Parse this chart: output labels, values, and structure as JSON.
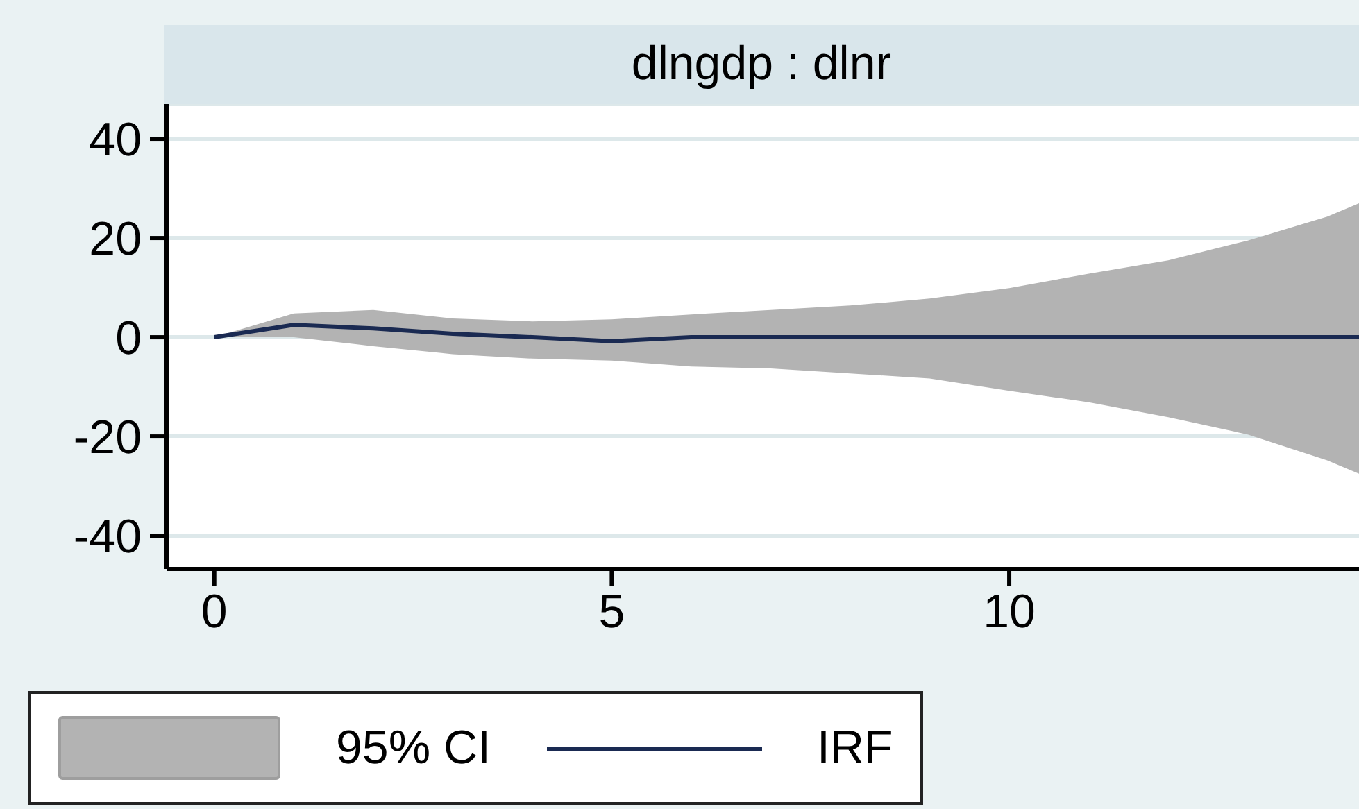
{
  "chart_data": {
    "type": "line",
    "title": "dlngdp : dlnr",
    "x": [
      0,
      1,
      2,
      3,
      4,
      5,
      6,
      7,
      8,
      9,
      10,
      11,
      12,
      13,
      14,
      14.4
    ],
    "series": [
      {
        "name": "IRF",
        "color": "#1a2a52",
        "values": [
          0,
          2.5,
          1.8,
          0.7,
          0,
          -0.8,
          0,
          0,
          0,
          0,
          0,
          0,
          0,
          0,
          0,
          0
        ],
        "lower": [
          0,
          0,
          -1.8,
          -3.4,
          -4.3,
          -4.7,
          -5.9,
          -6.3,
          -7.3,
          -8.3,
          -10.8,
          -13.1,
          -16.1,
          -19.6,
          -24.8,
          -27.5
        ],
        "upper": [
          0,
          4.8,
          5.5,
          3.8,
          3.2,
          3.6,
          4.6,
          5.5,
          6.4,
          7.8,
          9.9,
          12.8,
          15.5,
          19.5,
          24.3,
          27
        ]
      }
    ],
    "annotations": [
      "95% CI"
    ],
    "xlim": [
      -0.6,
      14.4
    ],
    "xticks": [
      0,
      5,
      10
    ],
    "ylim": [
      -46.7,
      47
    ],
    "yticks": [
      -40,
      -20,
      0,
      20,
      40
    ],
    "grid": "y",
    "legend": "bottom",
    "marker": "none",
    "line_style": "solid"
  }
}
